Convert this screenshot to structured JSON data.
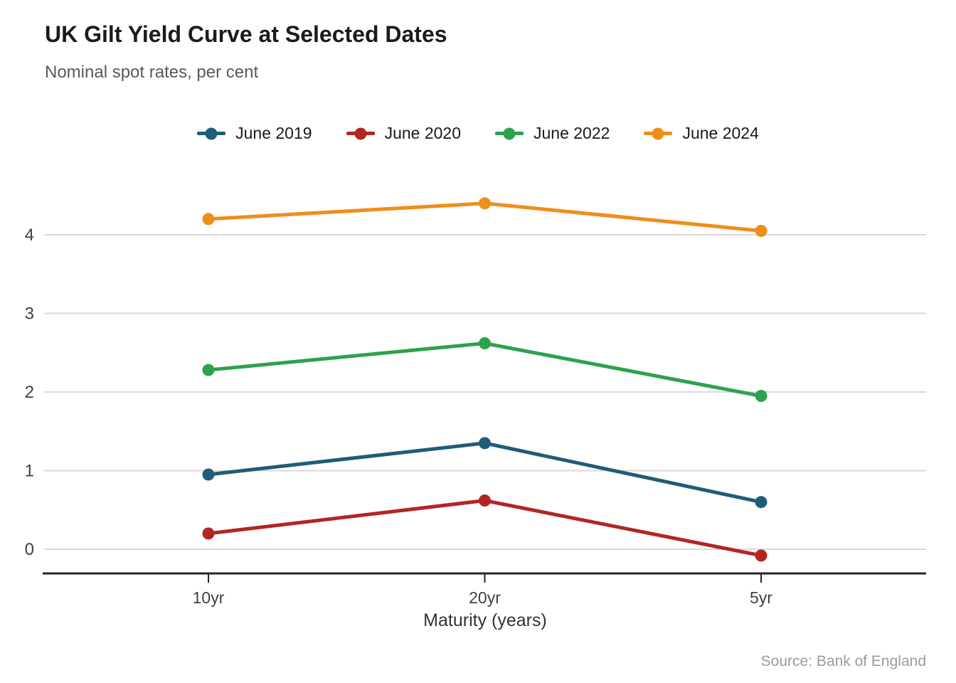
{
  "chart_data": {
    "type": "line",
    "title": "UK Gilt Yield Curve at Selected Dates",
    "subtitle": "Nominal spot rates, per cent",
    "xlabel": "Maturity (years)",
    "source": "Source: Bank of England",
    "categories": [
      "10yr",
      "20yr",
      "5yr"
    ],
    "y_ticks": [
      0,
      1,
      2,
      3,
      4
    ],
    "ylim": [
      -0.35,
      4.8
    ],
    "grid": "horizontal-only",
    "legend_position": "top-center",
    "axis_color": "#262626",
    "grid_color": "#d9d9d9",
    "tick_label_color": "#404040",
    "series": [
      {
        "name": "June 2019",
        "color": "#1f5c78",
        "values": [
          0.95,
          1.35,
          0.6
        ]
      },
      {
        "name": "June 2020",
        "color": "#b22622",
        "values": [
          0.2,
          0.62,
          -0.08
        ]
      },
      {
        "name": "June 2022",
        "color": "#2ca24c",
        "values": [
          2.28,
          2.62,
          1.95
        ]
      },
      {
        "name": "June 2024",
        "color": "#ef8e1b",
        "values": [
          4.2,
          4.4,
          4.05
        ]
      }
    ]
  }
}
